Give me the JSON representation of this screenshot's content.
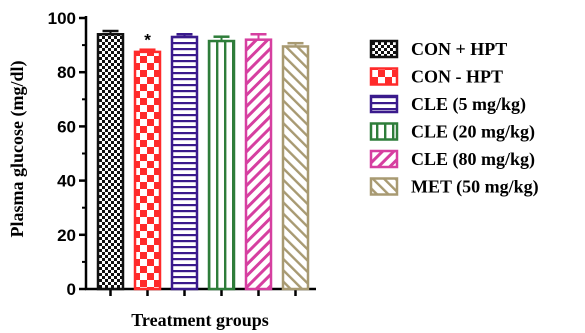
{
  "chart_data": {
    "type": "bar",
    "xlabel": "Treatment groups",
    "ylabel": "Plasma glucose (mg/dl)",
    "ylim": [
      0,
      100
    ],
    "yticks": [
      "0",
      "20",
      "40",
      "60",
      "80",
      "100"
    ],
    "grid": false,
    "legend_position": "right",
    "series": [
      {
        "name": "CON + HPT",
        "value": 94,
        "error": 1.2,
        "color": "#111111",
        "pattern": "checker-fine",
        "annotation": ""
      },
      {
        "name": "CON - HPT",
        "value": 87.5,
        "error": 0.8,
        "color": "#ff2a2a",
        "pattern": "checker-large",
        "annotation": "*"
      },
      {
        "name": "CLE (5 mg/kg)",
        "value": 93,
        "error": 1.0,
        "color": "#3a1a8c",
        "pattern": "horizontal-lines",
        "annotation": ""
      },
      {
        "name": "CLE (20 mg/kg)",
        "value": 91.5,
        "error": 1.6,
        "color": "#2e7d3a",
        "pattern": "vertical-lines",
        "annotation": ""
      },
      {
        "name": "CLE (80 mg/kg)",
        "value": 92,
        "error": 2.0,
        "color": "#d63fa0",
        "pattern": "diagonal-right",
        "annotation": ""
      },
      {
        "name": "MET (50 mg/kg)",
        "value": 89.5,
        "error": 1.2,
        "color": "#a89a72",
        "pattern": "diagonal-left",
        "annotation": ""
      }
    ]
  }
}
